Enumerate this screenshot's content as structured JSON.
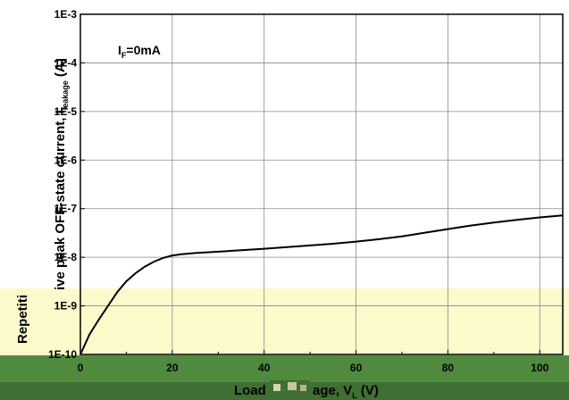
{
  "chart_data": {
    "type": "line",
    "xlabel_prefix": "Load ",
    "xlabel_suffix": "age, V",
    "xlabel_unit": " (V)",
    "xlabel_sub": "L",
    "ylabel_main": "ive peak OFF-state current, I",
    "ylabel_sub": "leakage",
    "ylabel_unit": " (A)",
    "ylabel_clip": "Repetiti",
    "annotation_main": "I",
    "annotation_sub": "F",
    "annotation_rest": "=0mA",
    "x_ticks": [
      0,
      20,
      40,
      60,
      80,
      100
    ],
    "x_tick_labels": [
      "0",
      "20",
      "40",
      "60",
      "80",
      "100"
    ],
    "y_ticks_exp": [
      -10,
      -9,
      -8,
      -7,
      -6,
      -5,
      -4,
      -3
    ],
    "y_tick_labels": [
      "1E-10",
      "1E-9",
      "1E-8",
      "1E-7",
      "1E-6",
      "1E-5",
      "1E-4",
      "1E-3"
    ],
    "xlim": [
      0,
      105
    ],
    "ylim": [
      1e-10,
      0.001
    ],
    "y_scale": "log",
    "grid": true,
    "series": [
      {
        "x": [
          0,
          2,
          4,
          6,
          8,
          10,
          12,
          14,
          16,
          18,
          20,
          22,
          25,
          30,
          35,
          40,
          45,
          50,
          55,
          60,
          65,
          70,
          75,
          80,
          85,
          90,
          95,
          100,
          105
        ],
        "y": [
          1e-10,
          2.6e-10,
          5.2e-10,
          1e-09,
          1.9e-09,
          3.2e-09,
          4.7e-09,
          6.4e-09,
          8.1e-09,
          9.7e-09,
          1.09e-08,
          1.15e-08,
          1.22e-08,
          1.3e-08,
          1.4e-08,
          1.5e-08,
          1.62e-08,
          1.75e-08,
          1.9e-08,
          2.1e-08,
          2.35e-08,
          2.7e-08,
          3.2e-08,
          3.8e-08,
          4.5e-08,
          5.2e-08,
          5.9e-08,
          6.6e-08,
          7.3e-08
        ]
      }
    ]
  },
  "colors": {
    "background": "#ffffff",
    "overlay_yellow": "#fcf9cb",
    "band_green": "#4f8a3e",
    "band_dark": "#3f6f33",
    "line": "#000000",
    "grid": "#8a8a8a"
  }
}
